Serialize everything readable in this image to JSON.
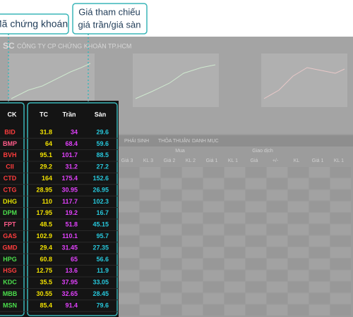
{
  "callouts": {
    "code": "Mã chứng khoán",
    "price": [
      "Giá tham chiếu",
      "giá trần/giá sàn"
    ]
  },
  "board": {
    "brand": "SC",
    "company": "CÔNG TY CP CHỨNG KHOÁN TP.HCM",
    "tabs": [
      "PHÁI SINH",
      "THỎA THUẬN",
      "DANH MỤC"
    ],
    "groups": [
      "Mua",
      "Giao dịch"
    ],
    "headers": [
      "Giá 3",
      "KL 3",
      "Giá 2",
      "KL 2",
      "Giá 1",
      "KL 1",
      "Giá",
      "+/-",
      "KL",
      "Giá 1",
      "KL 1"
    ]
  },
  "table": {
    "columns": [
      "CK",
      "TC",
      "Trần",
      "Sàn"
    ],
    "colors": {
      "tc": "#f0e000",
      "ceiling": "#e040fb",
      "floor": "#26c6da"
    },
    "rows": [
      {
        "code": "BID",
        "color": "#ff3d3d",
        "values": [
          "31.8",
          "34",
          "29.6"
        ]
      },
      {
        "code": "BMP",
        "color": "#ff5c8a",
        "values": [
          "64",
          "68.4",
          "59.6"
        ]
      },
      {
        "code": "BVH",
        "color": "#ff3d3d",
        "values": [
          "95.1",
          "101.7",
          "88.5"
        ]
      },
      {
        "code": "CII",
        "color": "#ff3d3d",
        "values": [
          "29.2",
          "31.2",
          "27.2"
        ]
      },
      {
        "code": "CTD",
        "color": "#ff3d3d",
        "values": [
          "164",
          "175.4",
          "152.6"
        ]
      },
      {
        "code": "CTG",
        "color": "#ff3d3d",
        "values": [
          "28.95",
          "30.95",
          "26.95"
        ]
      },
      {
        "code": "DHG",
        "color": "#e0e000",
        "values": [
          "110",
          "117.7",
          "102.3"
        ]
      },
      {
        "code": "DPM",
        "color": "#4cdf4c",
        "values": [
          "17.95",
          "19.2",
          "16.7"
        ]
      },
      {
        "code": "FPT",
        "color": "#ff5c8a",
        "values": [
          "48.5",
          "51.8",
          "45.15"
        ]
      },
      {
        "code": "GAS",
        "color": "#ff3d3d",
        "values": [
          "102.9",
          "110.1",
          "95.7"
        ]
      },
      {
        "code": "GMD",
        "color": "#ff3d3d",
        "values": [
          "29.4",
          "31.45",
          "27.35"
        ]
      },
      {
        "code": "HPG",
        "color": "#4cdf4c",
        "values": [
          "60.8",
          "65",
          "56.6"
        ]
      },
      {
        "code": "HSG",
        "color": "#ff3d3d",
        "values": [
          "12.75",
          "13.6",
          "11.9"
        ]
      },
      {
        "code": "KDC",
        "color": "#4cdf4c",
        "values": [
          "35.5",
          "37.95",
          "33.05"
        ]
      },
      {
        "code": "MBB",
        "color": "#4cdf4c",
        "values": [
          "30.55",
          "32.65",
          "28.45"
        ]
      },
      {
        "code": "MSN",
        "color": "#4cdf4c",
        "values": [
          "85.4",
          "91.4",
          "79.6"
        ]
      }
    ]
  }
}
